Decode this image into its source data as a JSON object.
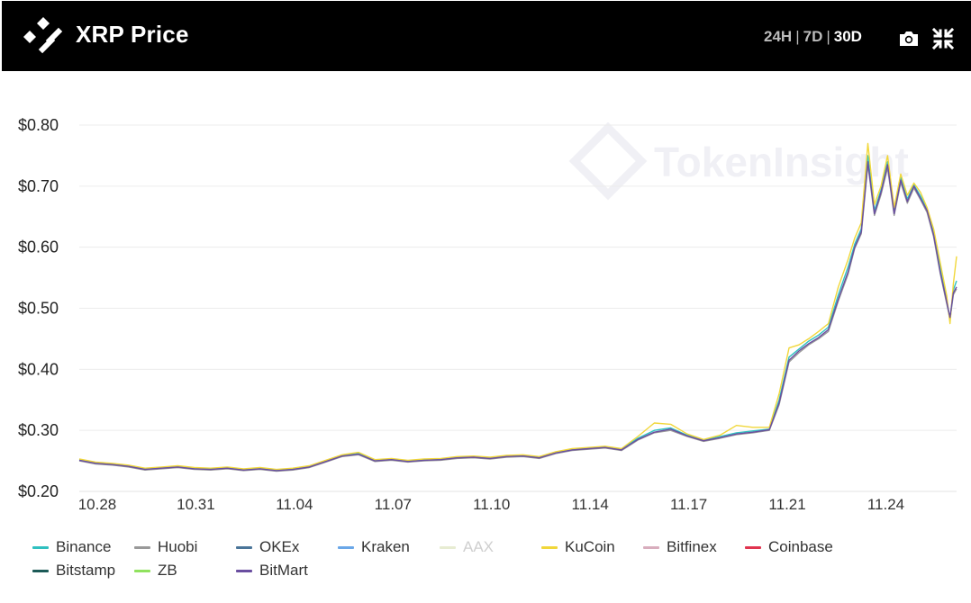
{
  "header": {
    "title": "XRP Price",
    "ranges": [
      {
        "label": "24H",
        "active": false
      },
      {
        "label": "7D",
        "active": false
      },
      {
        "label": "30D",
        "active": true
      }
    ],
    "separator": "|",
    "icons": [
      "camera-icon",
      "collapse-icon"
    ]
  },
  "watermark": {
    "text": "TokenInsight"
  },
  "colors": {
    "header_bg": "#000000",
    "grid": "#ececec"
  },
  "legend": [
    {
      "name": "Binance",
      "color": "#2fc0c0",
      "enabled": true
    },
    {
      "name": "Huobi",
      "color": "#999999",
      "enabled": true
    },
    {
      "name": "OKEx",
      "color": "#4a7599",
      "enabled": true
    },
    {
      "name": "Kraken",
      "color": "#6aa7e8",
      "enabled": true
    },
    {
      "name": "AAX",
      "color": "#e7ecd2",
      "enabled": false
    },
    {
      "name": "KuCoin",
      "color": "#f1d73a",
      "enabled": true
    },
    {
      "name": "Bitfinex",
      "color": "#d8adbd",
      "enabled": true
    },
    {
      "name": "Coinbase",
      "color": "#e0344f",
      "enabled": true
    },
    {
      "name": "Bitstamp",
      "color": "#1c5a57",
      "enabled": true
    },
    {
      "name": "ZB",
      "color": "#90e25e",
      "enabled": true
    },
    {
      "name": "BitMart",
      "color": "#6a4ea0",
      "enabled": true
    }
  ],
  "chart_data": {
    "type": "line",
    "title": "XRP Price",
    "xlabel": "",
    "ylabel": "",
    "ylim": [
      0.2,
      0.8
    ],
    "y_ticks": [
      "$0.20",
      "$0.30",
      "$0.40",
      "$0.50",
      "$0.60",
      "$0.70",
      "$0.80"
    ],
    "y_tick_values": [
      0.2,
      0.3,
      0.4,
      0.5,
      0.6,
      0.7,
      0.8
    ],
    "x_ticks": [
      "10.28",
      "10.31",
      "11.04",
      "11.07",
      "11.10",
      "11.14",
      "11.17",
      "11.21",
      "11.24"
    ],
    "x_tick_days": [
      0,
      3,
      6,
      9,
      12,
      15,
      18,
      21,
      24
    ],
    "xlim_days": [
      0,
      26.7
    ],
    "grid": true,
    "legend_position": "bottom",
    "series": [
      {
        "name": "BitMart",
        "color": "#6a4ea0",
        "x": [
          0,
          0.5,
          1,
          1.5,
          2,
          2.5,
          3,
          3.5,
          4,
          4.5,
          5,
          5.5,
          6,
          6.5,
          7,
          7.5,
          8,
          8.5,
          9,
          9.5,
          10,
          10.5,
          11,
          11.5,
          12,
          12.5,
          13,
          13.5,
          14,
          14.5,
          15,
          15.5,
          16,
          16.5,
          17,
          17.5,
          18,
          18.5,
          19,
          19.5,
          20,
          20.5,
          21,
          21.3,
          21.6,
          21.9,
          22.2,
          22.5,
          22.8,
          23.1,
          23.4,
          23.6,
          23.8,
          24,
          24.2,
          24.4,
          24.6,
          24.8,
          25,
          25.2,
          25.4,
          25.6,
          25.8,
          26,
          26.2,
          26.4,
          26.5,
          26.6,
          26.7
        ],
        "y": [
          0.251,
          0.246,
          0.244,
          0.241,
          0.236,
          0.238,
          0.24,
          0.237,
          0.236,
          0.238,
          0.235,
          0.237,
          0.234,
          0.236,
          0.24,
          0.249,
          0.258,
          0.261,
          0.25,
          0.252,
          0.249,
          0.251,
          0.252,
          0.255,
          0.256,
          0.254,
          0.257,
          0.258,
          0.255,
          0.263,
          0.268,
          0.27,
          0.272,
          0.268,
          0.285,
          0.297,
          0.302,
          0.291,
          0.283,
          0.288,
          0.294,
          0.297,
          0.301,
          0.345,
          0.415,
          0.43,
          0.442,
          0.452,
          0.465,
          0.515,
          0.56,
          0.6,
          0.625,
          0.74,
          0.655,
          0.69,
          0.735,
          0.655,
          0.71,
          0.675,
          0.7,
          0.68,
          0.66,
          0.62,
          0.56,
          0.51,
          0.485,
          0.525,
          0.535
        ]
      },
      {
        "name": "KuCoin",
        "color": "#f1d73a",
        "x": [
          0,
          0.5,
          1,
          1.5,
          2,
          2.5,
          3,
          3.5,
          4,
          4.5,
          5,
          5.5,
          6,
          6.5,
          7,
          7.5,
          8,
          8.5,
          9,
          9.5,
          10,
          10.5,
          11,
          11.5,
          12,
          12.5,
          13,
          13.5,
          14,
          14.5,
          15,
          15.5,
          16,
          16.5,
          17,
          17.5,
          18,
          18.5,
          19,
          19.5,
          20,
          20.5,
          21,
          21.3,
          21.6,
          21.9,
          22.2,
          22.5,
          22.8,
          23.1,
          23.4,
          23.6,
          23.8,
          24,
          24.2,
          24.4,
          24.6,
          24.8,
          25,
          25.2,
          25.4,
          25.6,
          25.8,
          26,
          26.2,
          26.4,
          26.5,
          26.6,
          26.7
        ],
        "y": [
          0.253,
          0.248,
          0.246,
          0.243,
          0.238,
          0.24,
          0.242,
          0.239,
          0.238,
          0.24,
          0.237,
          0.239,
          0.236,
          0.238,
          0.242,
          0.251,
          0.26,
          0.264,
          0.252,
          0.254,
          0.251,
          0.253,
          0.254,
          0.257,
          0.258,
          0.256,
          0.259,
          0.26,
          0.257,
          0.265,
          0.27,
          0.272,
          0.274,
          0.27,
          0.29,
          0.312,
          0.31,
          0.294,
          0.285,
          0.292,
          0.308,
          0.305,
          0.305,
          0.36,
          0.435,
          0.44,
          0.45,
          0.462,
          0.475,
          0.535,
          0.58,
          0.615,
          0.64,
          0.77,
          0.67,
          0.7,
          0.75,
          0.665,
          0.72,
          0.685,
          0.705,
          0.69,
          0.665,
          0.63,
          0.575,
          0.52,
          0.475,
          0.54,
          0.585
        ]
      },
      {
        "name": "Binance",
        "color": "#2fc0c0",
        "x": [
          0,
          0.5,
          1,
          1.5,
          2,
          2.5,
          3,
          3.5,
          4,
          4.5,
          5,
          5.5,
          6,
          6.5,
          7,
          7.5,
          8,
          8.5,
          9,
          9.5,
          10,
          10.5,
          11,
          11.5,
          12,
          12.5,
          13,
          13.5,
          14,
          14.5,
          15,
          15.5,
          16,
          16.5,
          17,
          17.5,
          18,
          18.5,
          19,
          19.5,
          20,
          20.5,
          21,
          21.3,
          21.6,
          21.9,
          22.2,
          22.5,
          22.8,
          23.1,
          23.4,
          23.6,
          23.8,
          24,
          24.2,
          24.4,
          24.6,
          24.8,
          25,
          25.2,
          25.4,
          25.6,
          25.8,
          26,
          26.2,
          26.4,
          26.5,
          26.6,
          26.7
        ],
        "y": [
          0.252,
          0.247,
          0.245,
          0.242,
          0.237,
          0.239,
          0.241,
          0.238,
          0.237,
          0.239,
          0.236,
          0.238,
          0.235,
          0.237,
          0.241,
          0.25,
          0.259,
          0.262,
          0.251,
          0.253,
          0.25,
          0.252,
          0.253,
          0.256,
          0.257,
          0.255,
          0.258,
          0.259,
          0.256,
          0.264,
          0.269,
          0.271,
          0.273,
          0.269,
          0.287,
          0.3,
          0.304,
          0.292,
          0.284,
          0.29,
          0.296,
          0.299,
          0.302,
          0.35,
          0.42,
          0.433,
          0.446,
          0.456,
          0.469,
          0.522,
          0.568,
          0.605,
          0.63,
          0.75,
          0.66,
          0.694,
          0.74,
          0.66,
          0.714,
          0.679,
          0.702,
          0.684,
          0.662,
          0.624,
          0.565,
          0.514,
          0.48,
          0.53,
          0.545
        ]
      },
      {
        "name": "Huobi",
        "color": "#999999",
        "x": [
          0,
          0.5,
          1,
          1.5,
          2,
          2.5,
          3,
          3.5,
          4,
          4.5,
          5,
          5.5,
          6,
          6.5,
          7,
          7.5,
          8,
          8.5,
          9,
          9.5,
          10,
          10.5,
          11,
          11.5,
          12,
          12.5,
          13,
          13.5,
          14,
          14.5,
          15,
          15.5,
          16,
          16.5,
          17,
          17.5,
          18,
          18.5,
          19,
          19.5,
          20,
          20.5,
          21,
          21.3,
          21.6,
          21.9,
          22.2,
          22.5,
          22.8,
          23.1,
          23.4,
          23.6,
          23.8,
          24,
          24.2,
          24.4,
          24.6,
          24.8,
          25,
          25.2,
          25.4,
          25.6,
          25.8,
          26,
          26.2,
          26.4,
          26.5,
          26.6,
          26.7
        ],
        "y": [
          0.25,
          0.245,
          0.243,
          0.24,
          0.235,
          0.237,
          0.239,
          0.236,
          0.235,
          0.237,
          0.234,
          0.236,
          0.233,
          0.235,
          0.239,
          0.248,
          0.257,
          0.26,
          0.249,
          0.251,
          0.248,
          0.25,
          0.251,
          0.254,
          0.255,
          0.253,
          0.256,
          0.257,
          0.254,
          0.262,
          0.267,
          0.269,
          0.271,
          0.267,
          0.284,
          0.296,
          0.3,
          0.29,
          0.282,
          0.287,
          0.293,
          0.296,
          0.3,
          0.342,
          0.412,
          0.427,
          0.44,
          0.45,
          0.462,
          0.512,
          0.556,
          0.598,
          0.622,
          0.735,
          0.652,
          0.686,
          0.73,
          0.652,
          0.706,
          0.672,
          0.697,
          0.678,
          0.657,
          0.617,
          0.557,
          0.507,
          0.482,
          0.522,
          0.532
        ]
      }
    ]
  }
}
